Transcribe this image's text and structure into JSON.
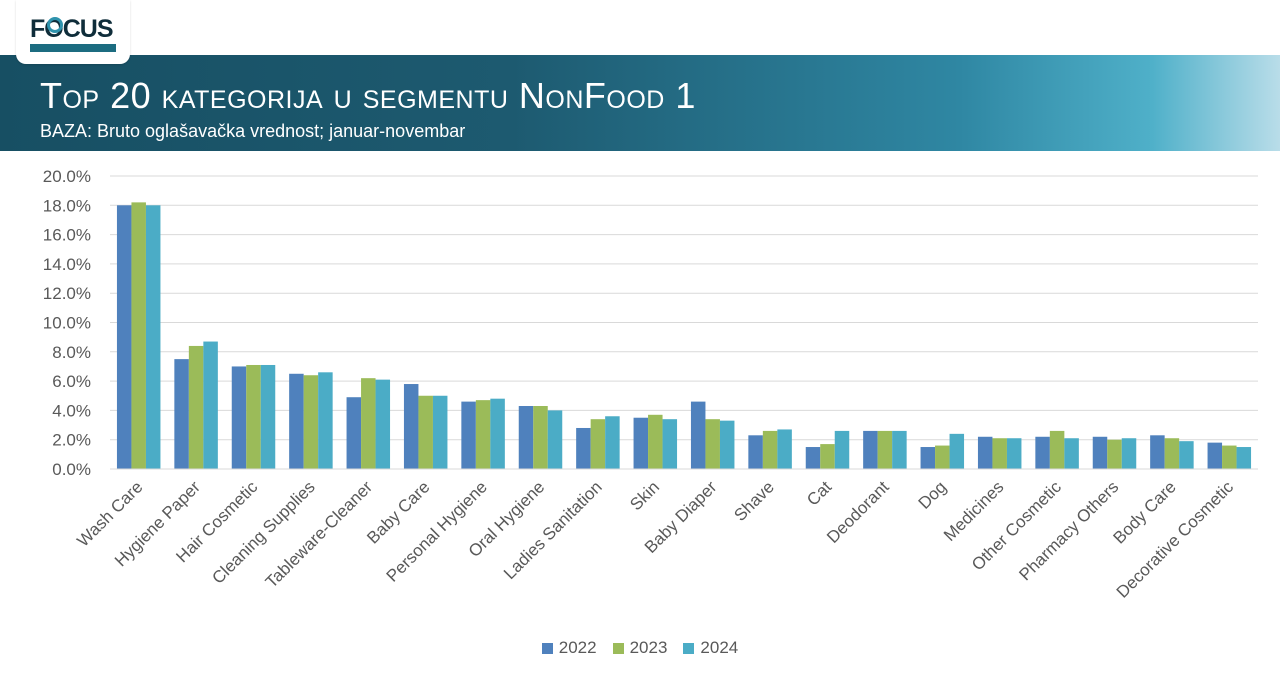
{
  "header": {
    "logo_text": "FOCUS",
    "title": "Top 20 kategorija u segmentu NonFood 1",
    "subtitle": "BAZA: Bruto oglašavačka vrednost; januar-novembar"
  },
  "chart_data": {
    "type": "bar",
    "categories": [
      "Wash Care",
      "Hygiene Paper",
      "Hair Cosmetic",
      "Cleaning Supplies",
      "Tableware-Cleaner",
      "Baby Care",
      "Personal Hygiene",
      "Oral Hygiene",
      "Ladies Sanitation",
      "Skin",
      "Baby Diaper",
      "Shave",
      "Cat",
      "Deodorant",
      "Dog",
      "Medicines",
      "Other Cosmetic",
      "Pharmacy Others",
      "Body Care",
      "Decorative Cosmetic"
    ],
    "series": [
      {
        "name": "2022",
        "color": "#4f81bd",
        "values": [
          18.0,
          7.5,
          7.0,
          6.5,
          4.9,
          5.8,
          4.6,
          4.3,
          2.8,
          3.5,
          4.6,
          2.3,
          1.5,
          2.6,
          1.5,
          2.2,
          2.2,
          2.2,
          2.3,
          1.8
        ]
      },
      {
        "name": "2023",
        "color": "#9bbb59",
        "values": [
          18.2,
          8.4,
          7.1,
          6.4,
          6.2,
          5.0,
          4.7,
          4.3,
          3.4,
          3.7,
          3.4,
          2.6,
          1.7,
          2.6,
          1.6,
          2.1,
          2.6,
          2.0,
          2.1,
          1.6
        ]
      },
      {
        "name": "2024",
        "color": "#4bacc6",
        "values": [
          18.0,
          8.7,
          7.1,
          6.6,
          6.1,
          5.0,
          4.8,
          4.0,
          3.6,
          3.4,
          3.3,
          2.7,
          2.6,
          2.6,
          2.4,
          2.1,
          2.1,
          2.1,
          1.9,
          1.5
        ]
      }
    ],
    "yticks": [
      "0.0%",
      "2.0%",
      "4.0%",
      "6.0%",
      "8.0%",
      "10.0%",
      "12.0%",
      "14.0%",
      "16.0%",
      "18.0%",
      "20.0%"
    ],
    "ylim": [
      0,
      20
    ],
    "grid": true,
    "legend_position": "bottom-center"
  }
}
